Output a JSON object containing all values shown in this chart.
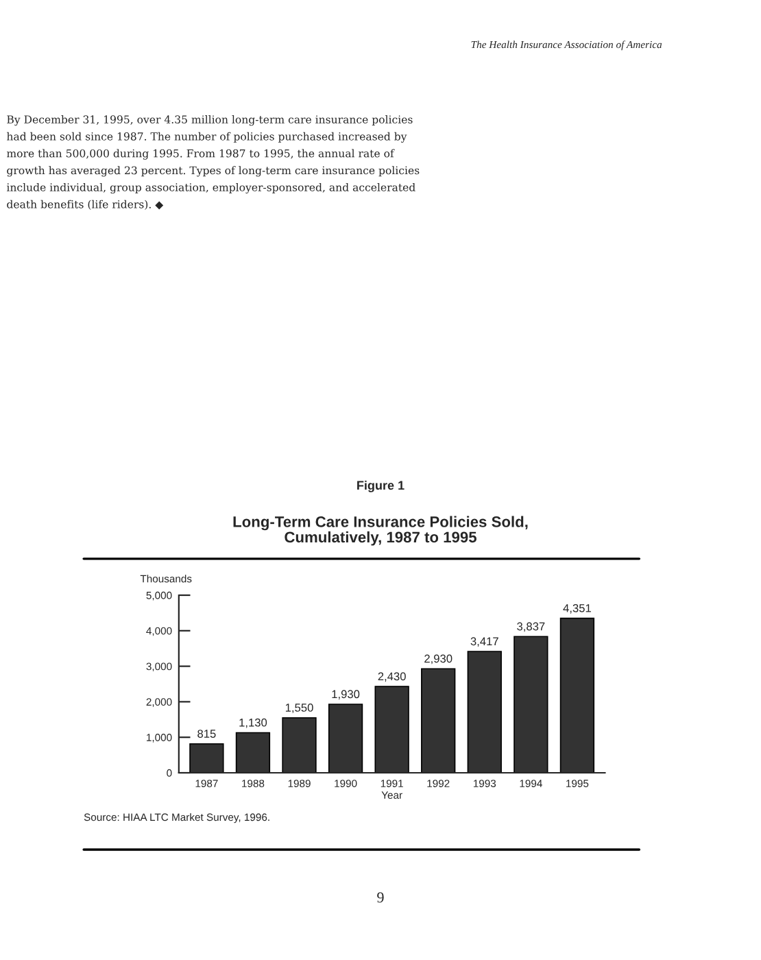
{
  "chart_data": {
    "type": "bar",
    "title": "Figure 1",
    "subtitle": "Long-Term Care Insurance Policies Sold,\nCumulatively, 1987 to 1995",
    "xlabel": "Year",
    "ylabel": "Thousands",
    "categories": [
      "1987",
      "1988",
      "1989",
      "1990",
      "1991",
      "1992",
      "1993",
      "1994",
      "1995"
    ],
    "values": [
      815,
      1130,
      1550,
      1930,
      2430,
      2930,
      3417,
      3837,
      4351
    ],
    "value_labels": [
      "815",
      "1,130",
      "1,550",
      "1,930",
      "2,430",
      "2,930",
      "3,417",
      "3,837",
      "4,351"
    ],
    "color": "#333333",
    "ylim": [
      0,
      5000
    ],
    "yticks": [
      {
        "value": 0,
        "label": "0"
      },
      {
        "value": 1000,
        "label": "1,000"
      },
      {
        "value": 2000,
        "label": "2,000"
      },
      {
        "value": 3000,
        "label": "3,000"
      },
      {
        "value": 4000,
        "label": "4,000"
      },
      {
        "value": 5000,
        "label": "5,000"
      }
    ],
    "grid": false,
    "annotations": [
      "The Health Insurance Association of America",
      "By December 31, 1995, over 4.35 million long-term care insurance policies had been sold since 1987. The number of policies purchased increased by more than 500,000 during 1995. From 1987 to 1995, the annual rate of growth has averaged 23 percent. Types of long-term care insurance policies include individual, group association, employer-sponsored, and accelerated death benefits (life riders). ◆",
      "Source: HIAA LTC Market Survey, 1996.",
      "9"
    ]
  }
}
